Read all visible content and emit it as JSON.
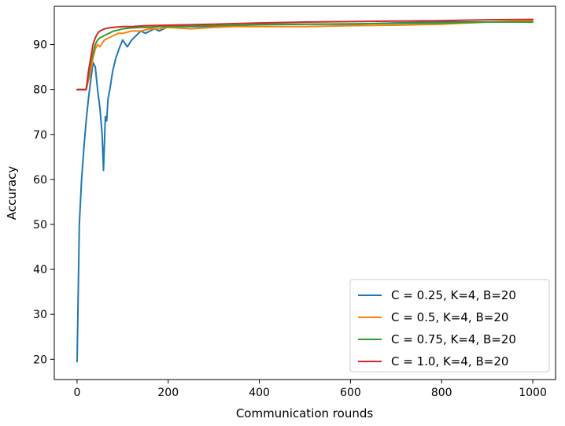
{
  "chart_data": {
    "type": "line",
    "title": "",
    "xlabel": "Communication rounds",
    "ylabel": "Accuracy",
    "xlim": [
      -50,
      1050
    ],
    "ylim": [
      15.5,
      98.5
    ],
    "xticks": [
      0,
      200,
      400,
      600,
      800,
      1000
    ],
    "yticks": [
      20,
      30,
      40,
      50,
      60,
      70,
      80,
      90
    ],
    "grid": false,
    "legend_position": "bottom-right",
    "series": [
      {
        "name": "C = 0.25, K=4, B=20",
        "color": "#1f77b4",
        "x": [
          0,
          5,
          10,
          15,
          20,
          25,
          30,
          35,
          40,
          45,
          50,
          55,
          58,
          62,
          65,
          68,
          72,
          78,
          85,
          92,
          100,
          110,
          120,
          130,
          140,
          150,
          160,
          170,
          180,
          190,
          200,
          250,
          300,
          350,
          400,
          450,
          500,
          600,
          700,
          800,
          900,
          1000
        ],
        "y": [
          19.5,
          50,
          60,
          67,
          73,
          78,
          82,
          86,
          85,
          80,
          76,
          70,
          62,
          74,
          73,
          78,
          80,
          84,
          87,
          89,
          91,
          89.5,
          91,
          92,
          93,
          92.5,
          93,
          93.5,
          93,
          93.5,
          94,
          94,
          94,
          94.2,
          94.5,
          94.5,
          94.5,
          94.5,
          94.8,
          95,
          95,
          95
        ]
      },
      {
        "name": "C = 0.5, K=4, B=20",
        "color": "#ff7f0e",
        "x": [
          0,
          10,
          20,
          25,
          30,
          35,
          40,
          45,
          50,
          60,
          70,
          80,
          90,
          100,
          120,
          140,
          160,
          180,
          200,
          250,
          300,
          350,
          400,
          450,
          500,
          600,
          700,
          800,
          900,
          1000
        ],
        "y": [
          80,
          80,
          80,
          82,
          84,
          87,
          89,
          90,
          89.5,
          91,
          91.5,
          92,
          92.5,
          92.5,
          93,
          93,
          93.5,
          93.5,
          93.8,
          93.5,
          93.8,
          94,
          94,
          94,
          94,
          94.2,
          94.3,
          94.5,
          95,
          95.3
        ]
      },
      {
        "name": "C = 0.75, K=4, B=20",
        "color": "#2ca02c",
        "x": [
          0,
          10,
          20,
          25,
          30,
          35,
          40,
          45,
          50,
          60,
          70,
          80,
          90,
          100,
          120,
          140,
          160,
          180,
          200,
          300,
          400,
          500,
          600,
          700,
          800,
          900,
          1000
        ],
        "y": [
          80,
          80,
          80,
          83,
          86,
          88,
          90,
          91,
          91.5,
          92,
          92.5,
          93,
          93.2,
          93.5,
          93.7,
          93.8,
          93.8,
          94,
          94,
          94.2,
          94.4,
          94.5,
          94.6,
          94.7,
          94.8,
          95,
          95
        ]
      },
      {
        "name": "C = 1.0, K=4, B=20",
        "color": "#d62728",
        "x": [
          0,
          10,
          20,
          25,
          30,
          35,
          40,
          45,
          50,
          60,
          70,
          80,
          100,
          120,
          150,
          200,
          300,
          400,
          500,
          600,
          700,
          800,
          900,
          1000
        ],
        "y": [
          80,
          80,
          80,
          84,
          87,
          90,
          91.5,
          92.5,
          93,
          93.5,
          93.7,
          93.8,
          94,
          94,
          94.2,
          94.3,
          94.5,
          94.8,
          95,
          95.1,
          95.2,
          95.3,
          95.5,
          95.6
        ]
      }
    ]
  }
}
